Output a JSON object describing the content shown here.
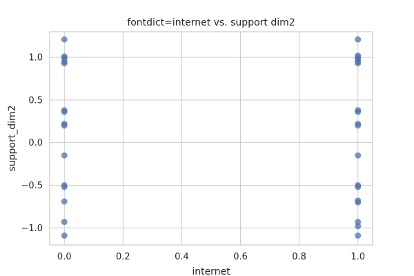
{
  "chart_data": {
    "type": "scatter",
    "title": "fontdict=internet vs. support dim2",
    "xlabel": "internet",
    "ylabel": "support_dim2",
    "xlim": [
      -0.05,
      1.05
    ],
    "ylim": [
      -1.2,
      1.3
    ],
    "x_ticks": [
      0.0,
      0.2,
      0.4,
      0.6,
      0.8,
      1.0
    ],
    "x_tick_labels": [
      "0.0",
      "0.2",
      "0.4",
      "0.6",
      "0.8",
      "1.0"
    ],
    "y_ticks": [
      -1.0,
      -0.5,
      0.0,
      0.5,
      1.0
    ],
    "y_tick_labels": [
      "−1.0",
      "−0.5",
      "0.0",
      "0.5",
      "1.0"
    ],
    "grid": true,
    "marker_color": "#4c72b0",
    "points": [
      {
        "x": 0,
        "y": 1.21
      },
      {
        "x": 0,
        "y": 1.01
      },
      {
        "x": 0,
        "y": 0.99
      },
      {
        "x": 0,
        "y": 0.95
      },
      {
        "x": 0,
        "y": 0.93
      },
      {
        "x": 0,
        "y": 0.38
      },
      {
        "x": 0,
        "y": 0.36
      },
      {
        "x": 0,
        "y": 0.22
      },
      {
        "x": 0,
        "y": 0.2
      },
      {
        "x": 0,
        "y": -0.15
      },
      {
        "x": 0,
        "y": -0.5
      },
      {
        "x": 0,
        "y": -0.52
      },
      {
        "x": 0,
        "y": -0.69
      },
      {
        "x": 0,
        "y": -0.93
      },
      {
        "x": 0,
        "y": -1.09
      },
      {
        "x": 1,
        "y": 1.21
      },
      {
        "x": 1,
        "y": 1.02
      },
      {
        "x": 1,
        "y": 1.0
      },
      {
        "x": 1,
        "y": 0.98
      },
      {
        "x": 1,
        "y": 0.95
      },
      {
        "x": 1,
        "y": 0.93
      },
      {
        "x": 1,
        "y": 0.38
      },
      {
        "x": 1,
        "y": 0.36
      },
      {
        "x": 1,
        "y": 0.22
      },
      {
        "x": 1,
        "y": 0.2
      },
      {
        "x": 1,
        "y": -0.15
      },
      {
        "x": 1,
        "y": -0.5
      },
      {
        "x": 1,
        "y": -0.52
      },
      {
        "x": 1,
        "y": -0.68
      },
      {
        "x": 1,
        "y": -0.7
      },
      {
        "x": 1,
        "y": -0.93
      },
      {
        "x": 1,
        "y": -0.98
      },
      {
        "x": 1,
        "y": -1.09
      }
    ]
  }
}
